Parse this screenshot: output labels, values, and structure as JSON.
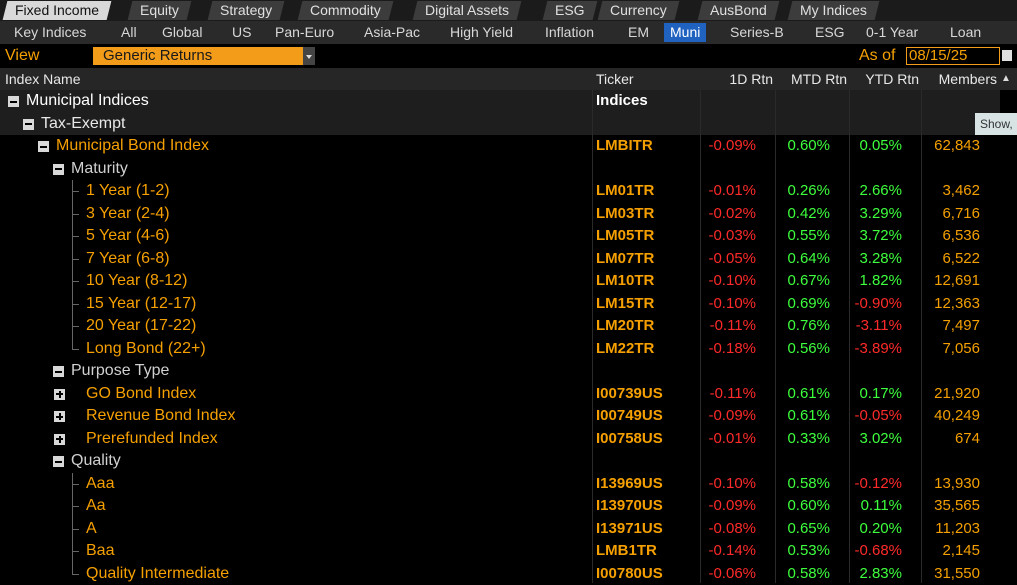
{
  "tabs": {
    "primary": [
      "Fixed Income",
      "Equity",
      "Strategy",
      "Commodity",
      "Digital Assets",
      "ESG",
      "Currency",
      "AusBond",
      "My Indices"
    ],
    "secondary": [
      "Key Indices",
      "All",
      "Global",
      "US",
      "Pan-Euro",
      "Asia-Pac",
      "High Yield",
      "Inflation",
      "EM",
      "Muni",
      "Series-B",
      "ESG",
      "0-1 Year",
      "Loan"
    ]
  },
  "toolbar": {
    "view_label": "View",
    "view_value": "Generic Returns",
    "as_of_label": "As of",
    "as_of_date": "08/15/25"
  },
  "table": {
    "columns": [
      "Index Name",
      "Ticker",
      "1D Rtn",
      "MTD Rtn",
      "YTD Rtn",
      "Members"
    ],
    "rows": [
      {
        "name": "Municipal Indices",
        "ticker": "Indices"
      },
      {
        "name": "Tax-Exempt"
      },
      {
        "name": "Municipal Bond Index",
        "ticker": "LMBITR",
        "cells": [
          "-0.09%",
          "0.60%",
          "0.05%",
          "62,843"
        ]
      },
      {
        "name": "Maturity"
      },
      {
        "name": "1 Year (1-2)",
        "ticker": "LM01TR",
        "cells": [
          "-0.01%",
          "0.26%",
          "2.66%",
          "3,462"
        ]
      },
      {
        "name": "3 Year (2-4)",
        "ticker": "LM03TR",
        "cells": [
          "-0.02%",
          "0.42%",
          "3.29%",
          "6,716"
        ]
      },
      {
        "name": "5 Year (4-6)",
        "ticker": "LM05TR",
        "cells": [
          "-0.03%",
          "0.55%",
          "3.72%",
          "6,536"
        ]
      },
      {
        "name": "7 Year (6-8)",
        "ticker": "LM07TR",
        "cells": [
          "-0.05%",
          "0.64%",
          "3.28%",
          "6,522"
        ]
      },
      {
        "name": "10 Year (8-12)",
        "ticker": "LM10TR",
        "cells": [
          "-0.10%",
          "0.67%",
          "1.82%",
          "12,691"
        ]
      },
      {
        "name": "15 Year (12-17)",
        "ticker": "LM15TR",
        "cells": [
          "-0.10%",
          "0.69%",
          "-0.90%",
          "12,363"
        ]
      },
      {
        "name": "20 Year (17-22)",
        "ticker": "LM20TR",
        "cells": [
          "-0.11%",
          "0.76%",
          "-3.11%",
          "7,497"
        ]
      },
      {
        "name": "Long Bond (22+)",
        "ticker": "LM22TR",
        "cells": [
          "-0.18%",
          "0.56%",
          "-3.89%",
          "7,056"
        ]
      },
      {
        "name": "Purpose Type"
      },
      {
        "name": "GO Bond Index",
        "ticker": "I00739US",
        "cells": [
          "-0.11%",
          "0.61%",
          "0.17%",
          "21,920"
        ]
      },
      {
        "name": "Revenue Bond Index",
        "ticker": "I00749US",
        "cells": [
          "-0.09%",
          "0.61%",
          "-0.05%",
          "40,249"
        ]
      },
      {
        "name": "Prerefunded Index",
        "ticker": "I00758US",
        "cells": [
          "-0.01%",
          "0.33%",
          "3.02%",
          "674"
        ]
      },
      {
        "name": "Quality"
      },
      {
        "name": "Aaa",
        "ticker": "I13969US",
        "cells": [
          "-0.10%",
          "0.58%",
          "-0.12%",
          "13,930"
        ]
      },
      {
        "name": "Aa",
        "ticker": "I13970US",
        "cells": [
          "-0.09%",
          "0.60%",
          "0.11%",
          "35,565"
        ]
      },
      {
        "name": "A",
        "ticker": "I13971US",
        "cells": [
          "-0.08%",
          "0.65%",
          "0.20%",
          "11,203"
        ]
      },
      {
        "name": "Baa",
        "ticker": "LMB1TR",
        "cells": [
          "-0.14%",
          "0.53%",
          "-0.68%",
          "2,145"
        ]
      },
      {
        "name": "Quality Intermediate",
        "ticker": "I00780US",
        "cells": [
          "-0.06%",
          "0.58%",
          "2.83%",
          "31,550"
        ]
      }
    ]
  },
  "tooltip": "Show,"
}
